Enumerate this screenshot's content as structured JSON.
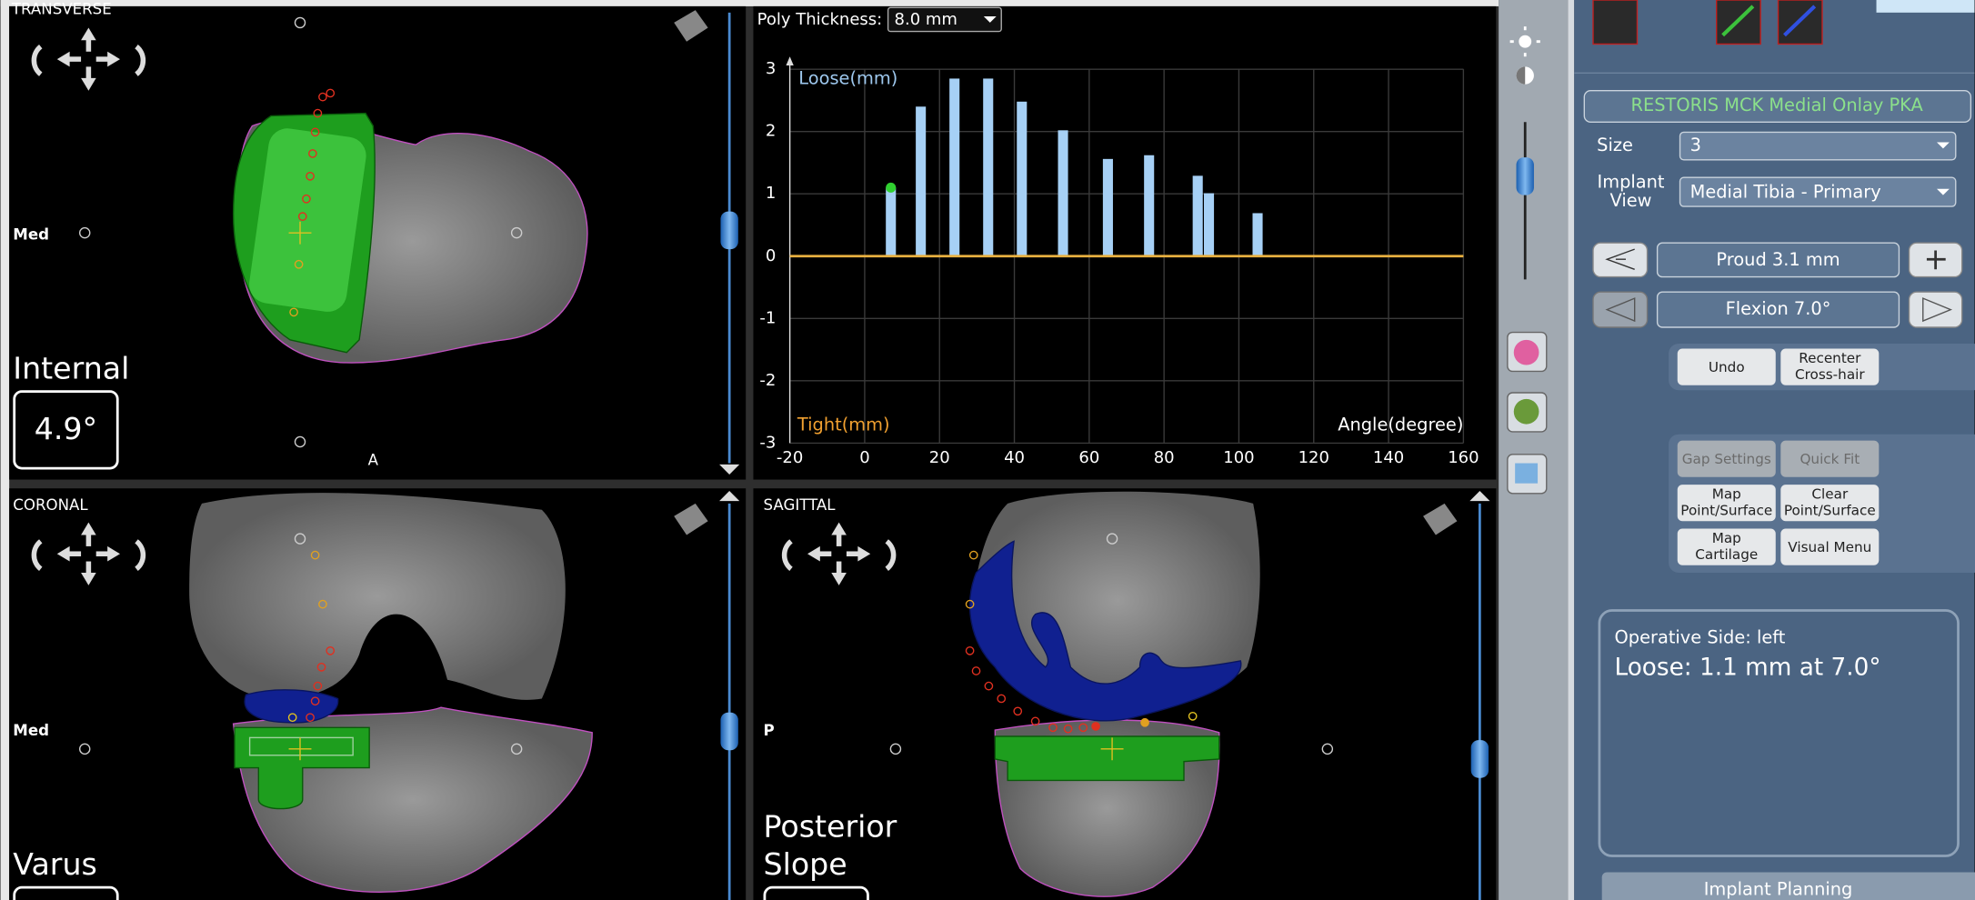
{
  "views": {
    "transverse": {
      "label": "TRANSVERSE",
      "side": "Med",
      "direction": "A",
      "angle_label": "Internal",
      "angle_value": "4.9°"
    },
    "coronal": {
      "label": "CORONAL",
      "side": "Med",
      "angle_label": "Varus"
    },
    "sagittal": {
      "label": "SAGITTAL",
      "side": "P",
      "angle_label": [
        "Posterior",
        "Slope"
      ]
    }
  },
  "chart_data": {
    "type": "bar",
    "poly_thickness_label": "Poly Thickness:",
    "poly_thickness": "8.0 mm",
    "y_label_top": "Loose(mm)",
    "y_label_bottom": "Tight(mm)",
    "x_label": "Angle(degree)",
    "x": [
      7,
      15,
      24,
      33,
      42,
      53,
      65,
      76,
      89,
      92,
      105
    ],
    "values": [
      1.1,
      2.4,
      2.85,
      2.85,
      2.48,
      2.02,
      1.56,
      1.62,
      1.29,
      1.01,
      0.69
    ],
    "color": "#a6d0f5",
    "xlim": [
      -20,
      160
    ],
    "xticks": [
      -20,
      0,
      20,
      40,
      60,
      80,
      100,
      120,
      140,
      160
    ],
    "ylim": [
      -3,
      3
    ],
    "yticks": [
      -3,
      -2,
      -1,
      0,
      1,
      2,
      3
    ],
    "grid": true
  },
  "panel": {
    "implant_title": "RESTORIS MCK Medial Onlay PKA",
    "size_label": "Size",
    "size_value": "3",
    "view_label": [
      "Implant",
      "View"
    ],
    "view_value": "Medial Tibia - Primary",
    "proud": "Proud 3.1 mm",
    "flexion": "Flexion 7.0°",
    "buttons": {
      "undo": "Undo",
      "recenter": [
        "Recenter",
        "Cross-hair"
      ],
      "gap_settings": "Gap Settings",
      "quick_fit": "Quick Fit",
      "map_point": [
        "Map",
        "Point/Surface"
      ],
      "clear_point": [
        "Clear",
        "Point/Surface"
      ],
      "map_cartilage": [
        "Map",
        "Cartilage"
      ],
      "visual_menu": "Visual Menu"
    },
    "operative_side": "Operative Side: left",
    "status": "Loose: 1.1 mm at 7.0°",
    "footer": "Implant Planning"
  }
}
